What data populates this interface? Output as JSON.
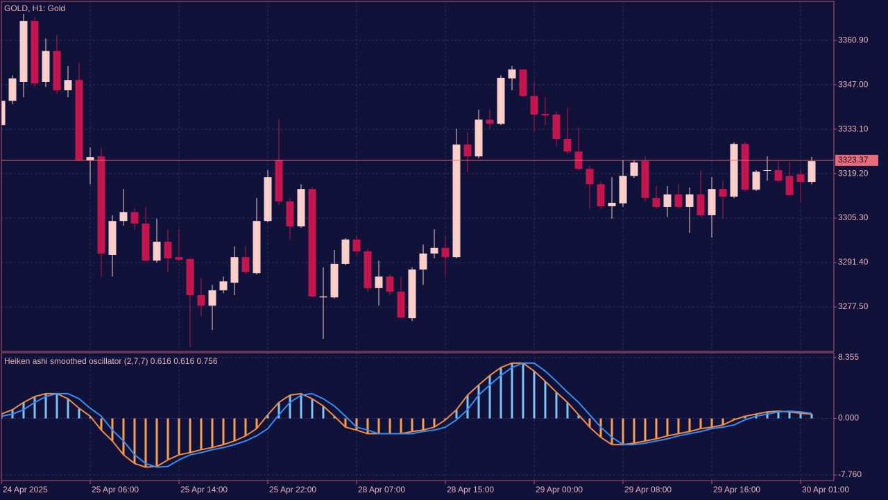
{
  "chart_data": [
    {
      "type": "candlestick",
      "title": "GOLD, H1:  Gold",
      "categories": [
        "24 Apr 2025",
        null,
        null,
        null,
        null,
        null,
        null,
        null,
        "25 Apr 06:00",
        null,
        null,
        null,
        null,
        null,
        null,
        null,
        "25 Apr 14:00",
        null,
        null,
        null,
        null,
        null,
        null,
        null,
        "25 Apr 22:00",
        null,
        null,
        null,
        null,
        null,
        null,
        null,
        "28 Apr 07:00",
        null,
        null,
        null,
        null,
        null,
        null,
        null,
        "28 Apr 15:00",
        null,
        null,
        null,
        null,
        null,
        null,
        null,
        "29 Apr 00:00",
        null,
        null,
        null,
        null,
        null,
        null,
        null,
        "29 Apr 08:00",
        null,
        null,
        null,
        null,
        null,
        null,
        null,
        "29 Apr 16:00",
        null,
        null,
        null,
        null,
        null,
        null,
        null,
        "30 Apr 01:00",
        null
      ],
      "open": [
        3334.4,
        3342.0,
        3347.9,
        3367.0,
        3347.9,
        3357.6,
        3345.3,
        3348.5,
        3323.3,
        3324.6,
        3293.8,
        3304.4,
        3307.2,
        3303.6,
        3292.0,
        3297.9,
        3293.1,
        3292.5,
        3281.2,
        3277.9,
        3282.7,
        3285.1,
        3293.1,
        3288.1,
        3304.4,
        3323.5,
        3310.5,
        3302.7,
        3314.4,
        3280.5,
        3280.5,
        3291.0,
        3298.6,
        3294.9,
        3283.4,
        3287.0,
        3282.3,
        3274.0,
        3289.2,
        3294.2,
        3296.0,
        3293.1,
        3328.3,
        3324.6,
        3336.1,
        3334.8,
        3349.0,
        3351.8,
        3343.5,
        3337.9,
        3337.7,
        3330.1,
        3326.1,
        3320.7,
        3315.9,
        3309.0,
        3309.9,
        3318.5,
        3323.1,
        3311.6,
        3308.8,
        3312.7,
        3308.8,
        3312.7,
        3306.2,
        3314.4,
        3312.0,
        3328.5,
        3314.2,
        3320.1,
        3320.3,
        3318.5,
        3319.0,
        3316.6
      ],
      "high": [
        3343.1,
        3350.0,
        3369.2,
        3368.1,
        3361.5,
        3362.6,
        3352.9,
        3353.9,
        3327.4,
        3327.4,
        3306.2,
        3314.4,
        3308.3,
        3308.8,
        3305.1,
        3301.8,
        3301.8,
        3292.7,
        3286.6,
        3284.4,
        3287.0,
        3296.4,
        3296.4,
        3311.6,
        3320.3,
        3336.1,
        3311.6,
        3315.9,
        3314.9,
        3289.9,
        3295.3,
        3299.0,
        3300.1,
        3295.7,
        3292.0,
        3287.7,
        3287.0,
        3289.9,
        3297.0,
        3301.8,
        3299.6,
        3333.3,
        3332.2,
        3339.2,
        3339.2,
        3350.0,
        3352.9,
        3351.8,
        3347.9,
        3343.1,
        3338.7,
        3339.8,
        3333.7,
        3321.8,
        3316.6,
        3318.1,
        3323.5,
        3323.5,
        3324.6,
        3315.3,
        3315.3,
        3315.9,
        3314.9,
        3320.3,
        3318.1,
        3317.0,
        3329.0,
        3329.2,
        3320.3,
        3324.6,
        3323.1,
        3322.9,
        3320.3,
        3324.4
      ],
      "low": [
        3334.4,
        3340.9,
        3343.1,
        3346.3,
        3346.3,
        3344.2,
        3343.1,
        3323.1,
        3315.9,
        3287.0,
        3287.0,
        3302.9,
        3301.8,
        3291.8,
        3291.4,
        3288.4,
        3292.0,
        3264.9,
        3274.7,
        3270.3,
        3281.8,
        3281.2,
        3287.7,
        3287.7,
        3304.0,
        3309.4,
        3298.6,
        3302.3,
        3280.5,
        3267.5,
        3280.1,
        3290.5,
        3293.6,
        3282.3,
        3277.9,
        3281.2,
        3274.0,
        3273.1,
        3284.4,
        3292.7,
        3287.0,
        3292.7,
        3319.6,
        3324.0,
        3333.3,
        3334.4,
        3345.3,
        3343.1,
        3332.2,
        3334.4,
        3327.9,
        3325.3,
        3320.3,
        3308.3,
        3308.3,
        3305.1,
        3308.8,
        3317.9,
        3310.5,
        3308.3,
        3305.7,
        3308.3,
        3300.7,
        3305.7,
        3299.2,
        3305.1,
        3311.6,
        3313.8,
        3313.8,
        3317.0,
        3316.6,
        3312.2,
        3310.5,
        3315.9
      ],
      "close": [
        3342.0,
        3349.0,
        3367.0,
        3347.4,
        3357.6,
        3345.3,
        3348.5,
        3323.5,
        3324.4,
        3294.2,
        3304.4,
        3307.2,
        3303.6,
        3292.0,
        3297.9,
        3292.7,
        3292.3,
        3281.2,
        3277.9,
        3282.7,
        3285.5,
        3293.1,
        3288.4,
        3304.4,
        3318.1,
        3310.5,
        3302.7,
        3314.4,
        3280.8,
        3280.8,
        3291.0,
        3298.6,
        3294.9,
        3283.4,
        3287.0,
        3282.3,
        3274.2,
        3289.2,
        3294.2,
        3296.0,
        3293.1,
        3328.3,
        3324.6,
        3336.1,
        3334.8,
        3349.2,
        3351.8,
        3343.5,
        3337.7,
        3337.4,
        3330.1,
        3326.1,
        3320.7,
        3315.9,
        3309.0,
        3310.1,
        3318.5,
        3322.7,
        3311.6,
        3308.8,
        3312.7,
        3308.8,
        3312.7,
        3306.2,
        3314.4,
        3312.0,
        3328.5,
        3314.2,
        3319.8,
        3320.3,
        3317.0,
        3312.5,
        3316.6,
        3323.1
      ],
      "up_color": "#f9cfc9",
      "down_color": "#c4154e",
      "last_price": 3323.37,
      "last_price_color": "#e86b7a",
      "ylim": [
        3263.6,
        3373.1
      ],
      "yticks": [
        {
          "value": 3360.9,
          "label": "3360.90"
        },
        {
          "value": 3347,
          "label": "3347.00"
        },
        {
          "value": 3333.1,
          "label": "3333.10"
        },
        {
          "value": 3319.2,
          "label": "3319.20"
        },
        {
          "value": 3305.3,
          "label": "3305.30"
        },
        {
          "value": 3291.4,
          "label": "3291.40"
        },
        {
          "value": 3277.5,
          "label": "3277.50"
        }
      ],
      "grid": true
    },
    {
      "type": "oscillator",
      "title": "Heiken ashi smoothed oscillator (2,7,7) 0.616 0.616 0.756",
      "series": [
        {
          "kind": "histogram",
          "color": "#7cc4f4",
          "negative_color": "#f4a055",
          "values": [
            0.6,
            1.2,
            2.2,
            3.0,
            3.4,
            3.4,
            2.7,
            1.4,
            0.3,
            -1.6,
            -3.1,
            -5.0,
            -6.2,
            -6.7,
            -6.6,
            -5.7,
            -5.0,
            -4.7,
            -4.3,
            -4.0,
            -3.6,
            -3.1,
            -2.4,
            -1.4,
            0.5,
            2.2,
            3.2,
            3.4,
            2.7,
            1.7,
            0.3,
            -1.2,
            -1.6,
            -2.1,
            -2.1,
            -2.1,
            -2.1,
            -1.8,
            -1.6,
            -1.2,
            -0.2,
            1.2,
            3.2,
            4.6,
            5.9,
            7.0,
            7.6,
            7.6,
            6.5,
            5.1,
            3.6,
            2.2,
            0.5,
            -1.2,
            -2.6,
            -3.6,
            -3.6,
            -3.4,
            -3.1,
            -2.8,
            -2.4,
            -2.1,
            -1.8,
            -1.4,
            -1.2,
            -0.9,
            -0.2,
            0.3,
            0.6,
            0.9,
            1.0,
            0.9,
            0.7,
            0.6
          ]
        },
        {
          "kind": "line",
          "color": "#f08c48",
          "values": [
            0.6,
            1.2,
            2.2,
            3.0,
            3.4,
            3.4,
            2.7,
            1.4,
            0.3,
            -1.6,
            -3.1,
            -5.0,
            -6.2,
            -6.7,
            -6.6,
            -5.7,
            -5.0,
            -4.7,
            -4.3,
            -4.0,
            -3.6,
            -3.1,
            -2.4,
            -1.4,
            0.5,
            2.2,
            3.2,
            3.4,
            2.7,
            1.7,
            0.3,
            -1.2,
            -1.6,
            -2.1,
            -2.1,
            -2.1,
            -2.1,
            -1.8,
            -1.6,
            -1.2,
            -0.2,
            1.2,
            3.2,
            4.6,
            5.9,
            7.0,
            7.6,
            7.6,
            6.5,
            5.1,
            3.6,
            2.2,
            0.5,
            -1.2,
            -2.6,
            -3.6,
            -3.6,
            -3.4,
            -3.1,
            -2.8,
            -2.4,
            -2.1,
            -1.8,
            -1.4,
            -1.2,
            -0.9,
            -0.2,
            0.3,
            0.6,
            0.9,
            1.0,
            0.9,
            0.7,
            0.6
          ]
        },
        {
          "kind": "line",
          "color": "#3a8cf0",
          "values": [
            0.3,
            0.6,
            1.2,
            2.2,
            3.0,
            3.4,
            3.4,
            2.7,
            1.4,
            0.3,
            -1.6,
            -3.1,
            -5.0,
            -6.2,
            -6.7,
            -6.6,
            -5.7,
            -5.0,
            -4.7,
            -4.3,
            -4.0,
            -3.6,
            -3.1,
            -2.4,
            -1.4,
            0.5,
            2.2,
            3.2,
            3.4,
            2.7,
            1.7,
            0.3,
            -1.2,
            -1.6,
            -2.1,
            -2.1,
            -2.1,
            -2.1,
            -1.8,
            -1.6,
            -1.2,
            -0.2,
            1.2,
            3.2,
            4.6,
            5.9,
            7.0,
            7.6,
            7.6,
            6.5,
            5.1,
            3.6,
            2.2,
            0.5,
            -1.2,
            -2.6,
            -3.6,
            -3.6,
            -3.4,
            -3.1,
            -2.8,
            -2.4,
            -2.1,
            -1.8,
            -1.4,
            -1.2,
            -0.9,
            -0.2,
            0.3,
            0.6,
            0.9,
            1.0,
            0.9,
            0.7
          ]
        }
      ],
      "ylim": [
        -8.54,
        9.02
      ],
      "yticks": [
        8.355,
        {
          "value": 0,
          "label": "0.000"
        },
        {
          "value": -7.76,
          "label": "-7.760"
        }
      ],
      "grid": true
    }
  ]
}
